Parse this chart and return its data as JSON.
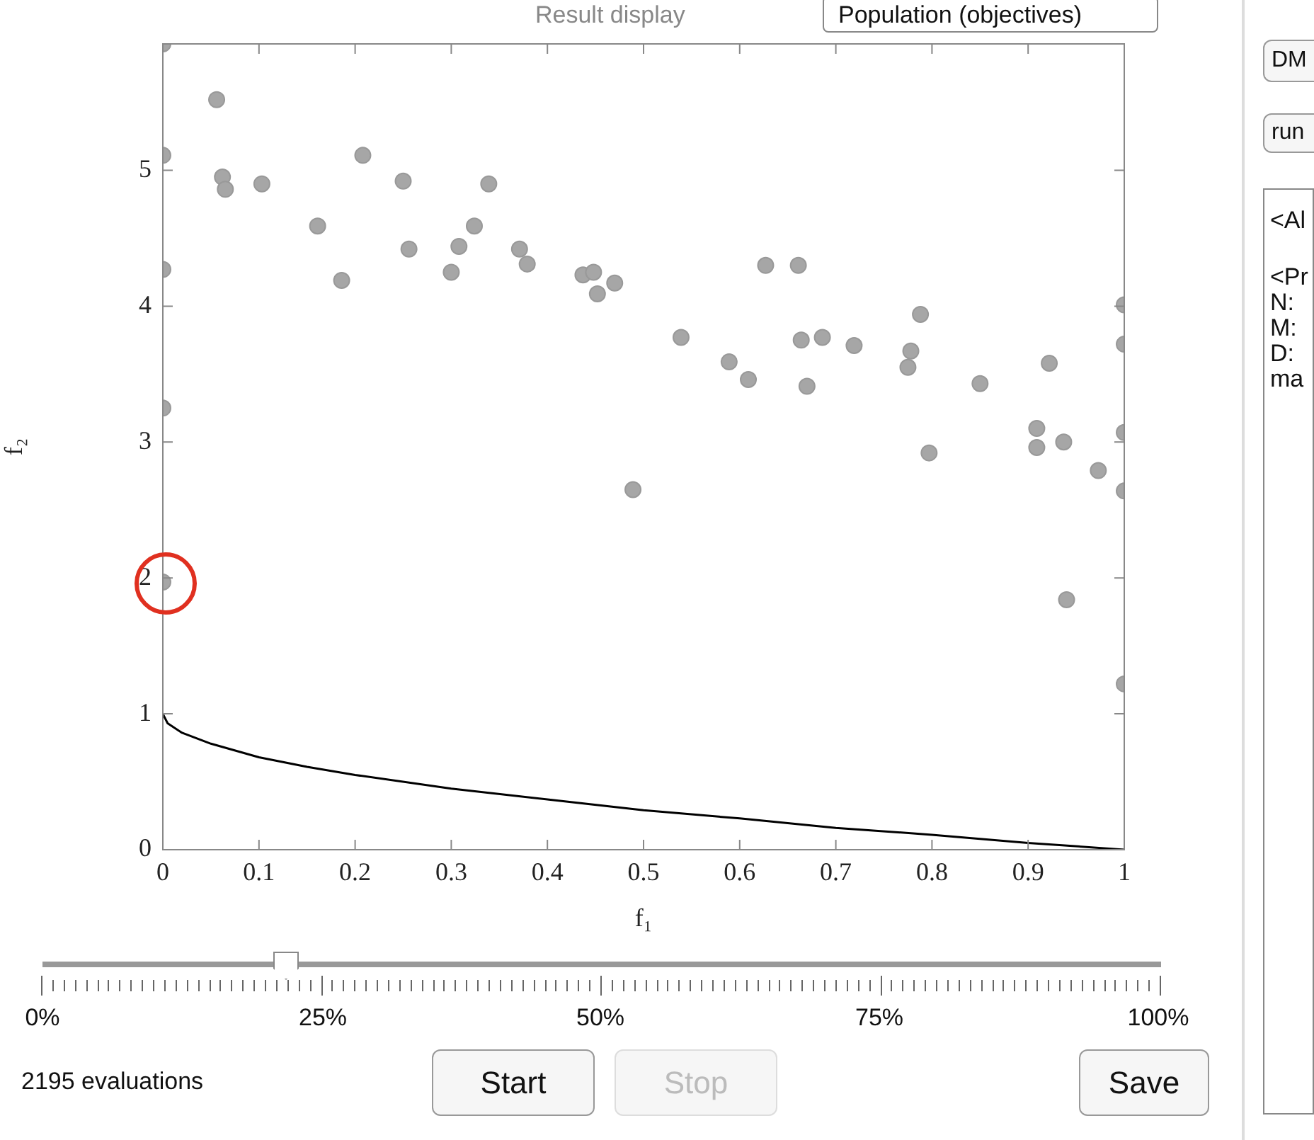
{
  "chart_data": {
    "type": "scatter",
    "xlabel": "f₁",
    "ylabel": "f₂",
    "xlim": [
      0,
      1
    ],
    "xticks": [
      0,
      0.1,
      0.2,
      0.3,
      0.4,
      0.5,
      0.6,
      0.7,
      0.8,
      0.9,
      1
    ],
    "ylim": [
      0,
      5.93
    ],
    "yticks": [
      0,
      1,
      2,
      3,
      4,
      5
    ],
    "grid": false,
    "legend": false,
    "series": [
      {
        "color": "#a6a6a6",
        "marker": "circle",
        "x": [
          0,
          0,
          0,
          0,
          0,
          0.056,
          0.062,
          0.065,
          0.103,
          0.161,
          0.186,
          0.208,
          0.25,
          0.256,
          0.3,
          0.308,
          0.324,
          0.339,
          0.371,
          0.379,
          0.437,
          0.448,
          0.452,
          0.47,
          0.489,
          0.539,
          0.589,
          0.609,
          0.627,
          0.661,
          0.664,
          0.67,
          0.686,
          0.719,
          0.775,
          0.778,
          0.788,
          0.797,
          0.85,
          0.909,
          0.909,
          0.922,
          0.937,
          0.94,
          0.973,
          1,
          1,
          1,
          1,
          1
        ],
        "values": [
          5.93,
          5.11,
          4.27,
          3.25,
          1.97,
          5.52,
          4.95,
          4.86,
          4.9,
          4.59,
          4.19,
          5.11,
          4.92,
          4.42,
          4.25,
          4.44,
          4.59,
          4.9,
          4.42,
          4.31,
          4.23,
          4.25,
          4.09,
          4.17,
          2.65,
          3.77,
          3.59,
          3.46,
          4.3,
          4.3,
          3.75,
          3.41,
          3.77,
          3.71,
          3.55,
          3.67,
          3.94,
          2.92,
          3.43,
          3.1,
          2.96,
          3.58,
          3,
          1.84,
          2.79,
          4.01,
          3.72,
          3.07,
          2.64,
          1.22
        ]
      },
      {
        "type": "line",
        "color": "#000000",
        "marker": "none",
        "line_style": "solid",
        "x": [
          0,
          0.005,
          0.02,
          0.05,
          0.1,
          0.15,
          0.2,
          0.3,
          0.4,
          0.5,
          0.6,
          0.7,
          0.8,
          0.9,
          1
        ],
        "values": [
          1,
          0.93,
          0.86,
          0.78,
          0.68,
          0.61,
          0.55,
          0.45,
          0.37,
          0.29,
          0.23,
          0.16,
          0.11,
          0.05,
          0
        ]
      }
    ],
    "annotations": [
      "Result display",
      "Population (objectives)",
      "0%",
      "25%",
      "50%",
      "75%",
      "100%",
      "2195 evaluations",
      "Start",
      "Stop",
      "Save",
      "DM",
      "run",
      "<Al",
      "<Pr",
      "N:",
      "M:",
      "D:",
      "ma"
    ]
  }
}
